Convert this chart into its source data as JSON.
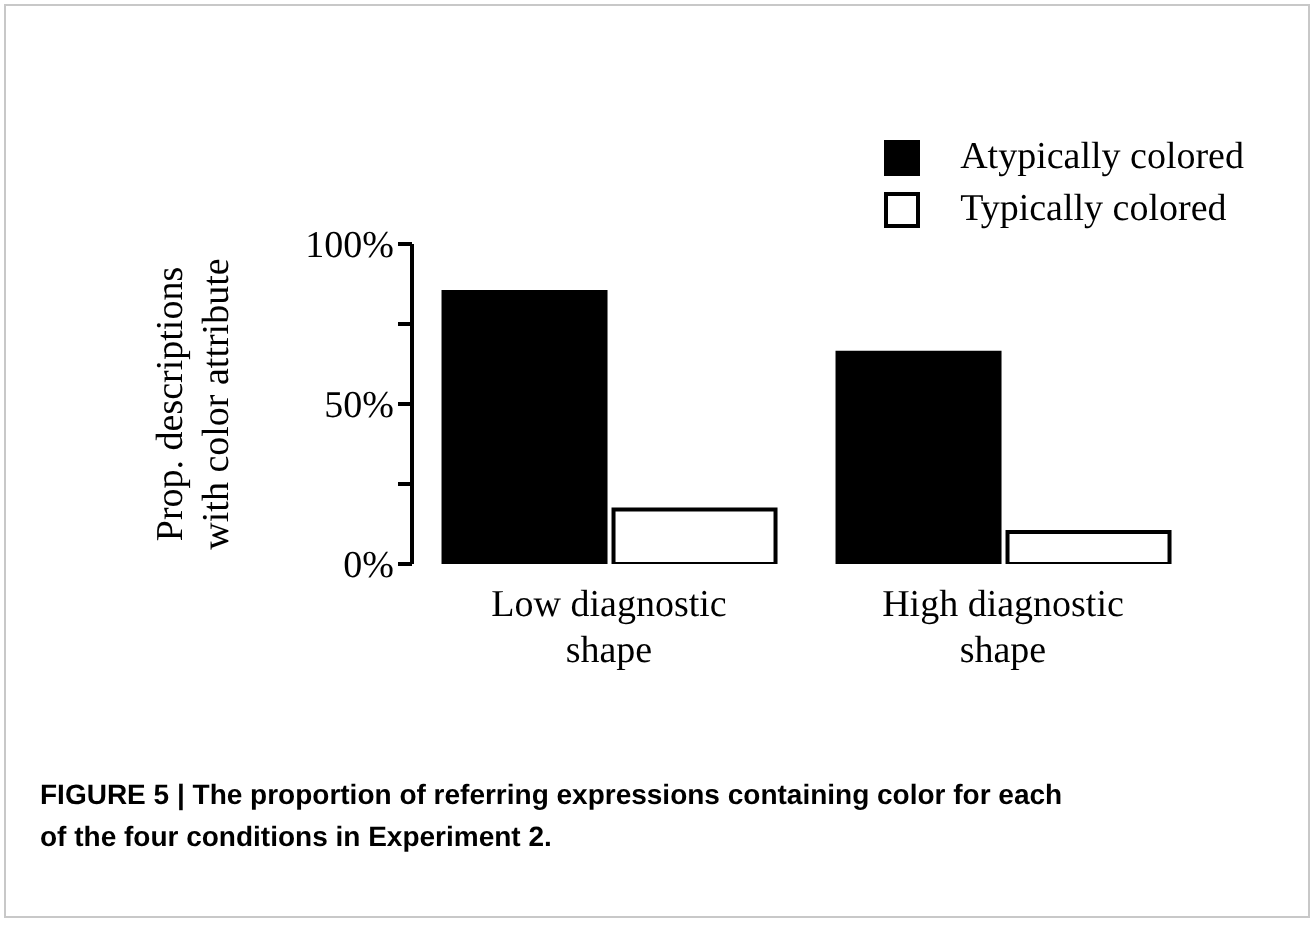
{
  "chart_data": {
    "type": "bar",
    "ylabel": "Prop. descriptions with color attribute",
    "categories": [
      "Low diagnostic shape",
      "High diagnostic shape"
    ],
    "series": [
      {
        "name": "Atypically colored",
        "color": "#000000",
        "values": [
          85,
          66
        ]
      },
      {
        "name": "Typically colored",
        "color": "#ffffff",
        "values": [
          17,
          10
        ]
      }
    ],
    "ylim": [
      0,
      100
    ],
    "yticks": [
      {
        "value": 0,
        "label": "0%"
      },
      {
        "value": 25,
        "label": null
      },
      {
        "value": 50,
        "label": "50%"
      },
      {
        "value": 75,
        "label": null
      },
      {
        "value": 100,
        "label": "100%"
      }
    ],
    "grid": false,
    "legend": "top right",
    "annotations": [
      "FIGURE 5 | The proportion of referring expressions containing color for each of the four conditions in Experiment 2."
    ]
  }
}
